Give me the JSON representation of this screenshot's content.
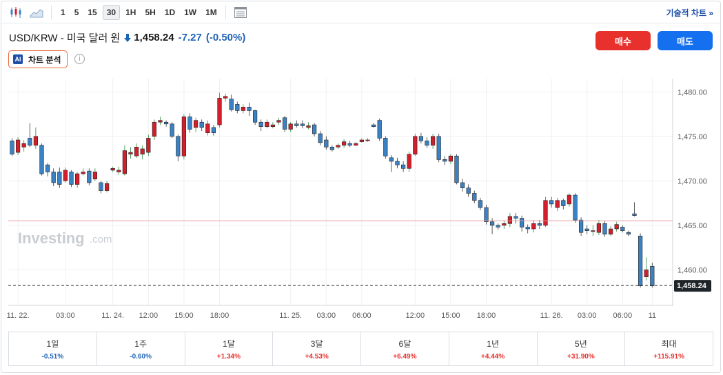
{
  "toolbar": {
    "timeframes": [
      "1",
      "5",
      "15",
      "30",
      "1H",
      "5H",
      "1D",
      "1W",
      "1M"
    ],
    "active_timeframe": "30",
    "technical_label": "기술적 차트 »"
  },
  "header": {
    "pair": "USD/KRW - 미국 달러 원",
    "price": "1,458.24",
    "change": "-7.27",
    "change_pct": "(-0.50%)"
  },
  "actions": {
    "buy": "매수",
    "sell": "매도"
  },
  "ai": {
    "badge": "AI",
    "label": "차트 분석",
    "info": "i"
  },
  "watermark": {
    "brand": "Investing",
    "suffix": ".com"
  },
  "chart_data": {
    "type": "candlestick",
    "ylim": [
      1456,
      1481.5
    ],
    "y_ticks": [
      "1,480.00",
      "1,475.00",
      "1,470.00",
      "1,465.00",
      "1,460.00"
    ],
    "y_tick_values": [
      1480,
      1475,
      1470,
      1465,
      1460
    ],
    "x_ticks": [
      "11. 22.",
      "03:00",
      "11. 24.",
      "12:00",
      "15:00",
      "18:00",
      "11. 25.",
      "03:00",
      "06:00",
      "12:00",
      "15:00",
      "18:00",
      "11. 26.",
      "03:00",
      "06:00",
      "11"
    ],
    "x_tick_index": [
      1,
      9,
      17,
      23,
      29,
      35,
      47,
      53,
      59,
      68,
      74,
      80,
      91,
      97,
      103,
      108
    ],
    "last_price": "1,458.24",
    "last_price_value": 1458.24,
    "reference_line": 1465.5,
    "up_color": "#d21f2b",
    "down_color": "#3b82c4",
    "candles": [
      [
        1474.5,
        1473.0,
        1474.8,
        1472.8
      ],
      [
        1473.2,
        1474.6,
        1474.9,
        1472.9
      ],
      [
        1473.8,
        1474.2,
        1474.6,
        1473.3
      ],
      [
        1474.8,
        1474.0,
        1476.5,
        1473.8
      ],
      [
        1474.0,
        1475.0,
        1476.0,
        1473.6
      ],
      [
        1474.0,
        1470.8,
        1474.2,
        1470.6
      ],
      [
        1471.8,
        1471.0,
        1472.0,
        1470.5
      ],
      [
        1471.0,
        1469.8,
        1471.4,
        1469.4
      ],
      [
        1471.0,
        1469.6,
        1471.5,
        1469.2
      ],
      [
        1470.0,
        1471.2,
        1471.5,
        1469.8
      ],
      [
        1471.0,
        1469.6,
        1471.2,
        1469.3
      ],
      [
        1469.6,
        1470.8,
        1471.0,
        1469.2
      ],
      [
        1470.8,
        1471.0,
        1471.4,
        1470.6
      ],
      [
        1471.1,
        1469.8,
        1471.4,
        1469.5
      ],
      [
        1470.2,
        1471.0,
        1471.4,
        1470.0
      ],
      [
        1469.8,
        1468.9,
        1470.0,
        1468.6
      ],
      [
        1468.9,
        1469.7,
        1470.0,
        1468.7
      ],
      [
        1471.2,
        1471.4,
        1471.6,
        1471.0
      ],
      [
        1471.0,
        1471.2,
        1471.6,
        1470.7
      ],
      [
        1470.8,
        1473.4,
        1474.0,
        1470.6
      ],
      [
        1473.0,
        1473.2,
        1473.8,
        1472.5
      ],
      [
        1472.8,
        1473.8,
        1474.2,
        1472.6
      ],
      [
        1473.0,
        1473.6,
        1474.0,
        1472.4
      ],
      [
        1473.2,
        1474.8,
        1475.2,
        1472.8
      ],
      [
        1475.0,
        1476.6,
        1476.9,
        1474.6
      ],
      [
        1476.6,
        1476.8,
        1477.2,
        1476.3
      ],
      [
        1476.6,
        1476.4,
        1476.8,
        1476.1
      ],
      [
        1476.4,
        1475.0,
        1476.6,
        1474.8
      ],
      [
        1475.0,
        1472.8,
        1475.2,
        1472.2
      ],
      [
        1472.8,
        1477.2,
        1477.5,
        1472.4
      ],
      [
        1477.2,
        1475.8,
        1477.6,
        1475.4
      ],
      [
        1476.0,
        1476.8,
        1477.1,
        1475.5
      ],
      [
        1476.6,
        1476.0,
        1476.9,
        1475.6
      ],
      [
        1475.4,
        1476.4,
        1476.8,
        1475.1
      ],
      [
        1476.0,
        1475.4,
        1476.3,
        1475.1
      ],
      [
        1476.3,
        1479.3,
        1479.9,
        1476.0
      ],
      [
        1479.3,
        1479.5,
        1479.8,
        1478.9
      ],
      [
        1479.2,
        1478.0,
        1479.7,
        1477.8
      ],
      [
        1478.6,
        1477.9,
        1478.9,
        1477.6
      ],
      [
        1477.9,
        1478.3,
        1478.6,
        1477.6
      ],
      [
        1478.3,
        1477.9,
        1478.8,
        1477.3
      ],
      [
        1477.9,
        1476.6,
        1478.0,
        1476.3
      ],
      [
        1476.6,
        1476.1,
        1476.9,
        1475.6
      ],
      [
        1476.1,
        1476.6,
        1476.9,
        1475.9
      ],
      [
        1476.1,
        1476.3,
        1476.6,
        1475.9
      ],
      [
        1476.6,
        1476.8,
        1477.1,
        1476.3
      ],
      [
        1477.1,
        1475.8,
        1477.3,
        1475.5
      ],
      [
        1475.8,
        1476.4,
        1476.6,
        1475.5
      ],
      [
        1476.4,
        1476.2,
        1476.8,
        1476.0
      ],
      [
        1476.4,
        1476.2,
        1476.8,
        1475.9
      ],
      [
        1476.0,
        1476.2,
        1476.6,
        1475.8
      ],
      [
        1476.3,
        1475.3,
        1476.5,
        1475.0
      ],
      [
        1475.3,
        1474.3,
        1475.6,
        1474.0
      ],
      [
        1474.6,
        1473.8,
        1475.0,
        1473.5
      ],
      [
        1473.8,
        1473.5,
        1474.0,
        1473.3
      ],
      [
        1473.8,
        1474.0,
        1474.2,
        1473.6
      ],
      [
        1474.0,
        1474.4,
        1474.7,
        1473.7
      ],
      [
        1474.2,
        1474.0,
        1474.5,
        1473.8
      ],
      [
        1474.0,
        1474.2,
        1474.4,
        1473.9
      ],
      [
        1474.4,
        1474.6,
        1474.8,
        1474.3
      ],
      [
        1474.6,
        1474.6,
        1474.8,
        1474.4
      ],
      [
        1476.3,
        1476.1,
        1476.5,
        1476.0
      ],
      [
        1476.8,
        1474.8,
        1477.0,
        1474.5
      ],
      [
        1474.8,
        1472.8,
        1475.0,
        1472.5
      ],
      [
        1472.6,
        1472.2,
        1472.9,
        1471.0
      ],
      [
        1472.2,
        1471.8,
        1472.6,
        1471.4
      ],
      [
        1471.8,
        1471.4,
        1472.2,
        1471.0
      ],
      [
        1471.4,
        1473.0,
        1473.3,
        1471.0
      ],
      [
        1473.0,
        1475.0,
        1475.3,
        1472.8
      ],
      [
        1475.0,
        1474.5,
        1475.4,
        1474.2
      ],
      [
        1474.5,
        1474.0,
        1474.9,
        1473.7
      ],
      [
        1474.0,
        1475.0,
        1475.3,
        1473.6
      ],
      [
        1475.0,
        1472.4,
        1475.3,
        1472.1
      ],
      [
        1472.4,
        1472.2,
        1472.8,
        1471.8
      ],
      [
        1472.2,
        1472.8,
        1473.0,
        1471.9
      ],
      [
        1472.8,
        1469.8,
        1473.0,
        1469.6
      ],
      [
        1469.8,
        1469.2,
        1470.2,
        1468.8
      ],
      [
        1469.2,
        1468.6,
        1469.6,
        1468.2
      ],
      [
        1468.6,
        1467.8,
        1468.9,
        1467.5
      ],
      [
        1467.8,
        1467.0,
        1468.1,
        1466.7
      ],
      [
        1467.0,
        1465.4,
        1467.3,
        1465.1
      ],
      [
        1465.4,
        1465.0,
        1465.8,
        1464.0
      ],
      [
        1465.0,
        1464.8,
        1465.2,
        1464.5
      ],
      [
        1465.0,
        1465.2,
        1465.5,
        1464.6
      ],
      [
        1465.2,
        1466.0,
        1466.4,
        1464.8
      ],
      [
        1466.0,
        1465.8,
        1466.4,
        1465.2
      ],
      [
        1465.8,
        1464.8,
        1466.1,
        1464.3
      ],
      [
        1464.8,
        1464.6,
        1465.1,
        1464.1
      ],
      [
        1464.6,
        1465.2,
        1465.6,
        1464.2
      ],
      [
        1465.2,
        1465.0,
        1465.6,
        1464.6
      ],
      [
        1465.0,
        1467.8,
        1468.2,
        1464.8
      ],
      [
        1467.8,
        1467.4,
        1468.2,
        1467.0
      ],
      [
        1467.0,
        1467.8,
        1468.1,
        1466.6
      ],
      [
        1467.8,
        1467.2,
        1468.0,
        1466.8
      ],
      [
        1467.4,
        1468.4,
        1468.6,
        1467.1
      ],
      [
        1468.4,
        1465.6,
        1468.6,
        1465.3
      ],
      [
        1465.6,
        1464.2,
        1465.9,
        1463.8
      ],
      [
        1464.6,
        1464.4,
        1465.0,
        1464.0
      ],
      [
        1464.4,
        1464.4,
        1465.0,
        1463.8
      ],
      [
        1464.2,
        1465.2,
        1465.6,
        1463.9
      ],
      [
        1465.2,
        1464.0,
        1465.5,
        1463.7
      ],
      [
        1464.0,
        1464.6,
        1464.9,
        1463.8
      ],
      [
        1464.6,
        1465.1,
        1465.4,
        1464.3
      ],
      [
        1464.8,
        1464.4,
        1465.0,
        1464.2
      ],
      [
        1464.2,
        1464.0,
        1464.4,
        1463.8
      ],
      [
        1466.3,
        1466.1,
        1467.6,
        1466.0
      ],
      [
        1463.8,
        1458.2,
        1464.1,
        1458.0
      ],
      [
        1459.2,
        1460.0,
        1461.4,
        1458.8
      ],
      [
        1460.4,
        1458.2,
        1460.8,
        1458.0
      ]
    ]
  },
  "performance": [
    {
      "period": "1일",
      "value": "-0.51%",
      "dir": "neg"
    },
    {
      "period": "1주",
      "value": "-0.60%",
      "dir": "neg"
    },
    {
      "period": "1달",
      "value": "+1.34%",
      "dir": "pos"
    },
    {
      "period": "3달",
      "value": "+4.53%",
      "dir": "pos"
    },
    {
      "period": "6달",
      "value": "+6.49%",
      "dir": "pos"
    },
    {
      "period": "1년",
      "value": "+4.44%",
      "dir": "pos"
    },
    {
      "period": "5년",
      "value": "+31.90%",
      "dir": "pos"
    },
    {
      "period": "최대",
      "value": "+115.91%",
      "dir": "pos"
    }
  ]
}
